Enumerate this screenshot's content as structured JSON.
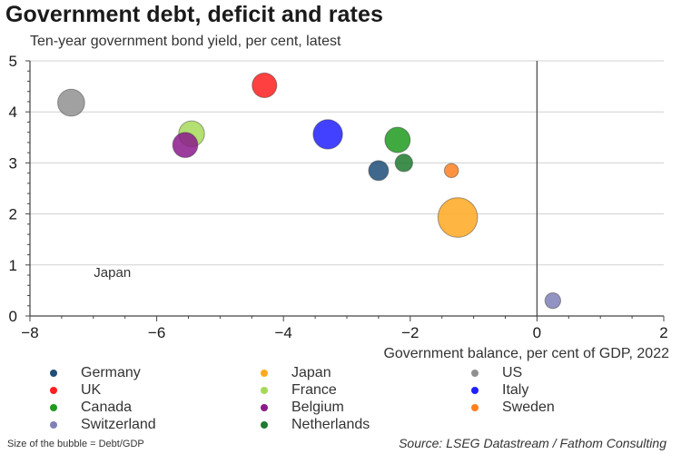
{
  "title": "Government debt, deficit and rates",
  "subtitle": "Ten-year government bond yield, per cent, latest",
  "footnote": "Size of the bubble = Debt/GDP",
  "source": "Source: LSEG Datastream / Fathom Consulting",
  "chart_data": {
    "type": "scatter",
    "bubble": true,
    "size_meaning": "Debt/GDP",
    "xlabel": "Government balance, per cent of GDP, 2022",
    "ylabel": "",
    "xlim": [
      -8,
      2
    ],
    "ylim": [
      0,
      5
    ],
    "x_ticks": [
      -8,
      -6,
      -4,
      -2,
      0,
      2
    ],
    "y_ticks": [
      0,
      1,
      2,
      3,
      4,
      5
    ],
    "x_tick_labels": [
      "−8",
      "−6",
      "−4",
      "−2",
      "0",
      "2"
    ],
    "y_tick_labels": [
      "0",
      "1",
      "2",
      "3",
      "4",
      "5"
    ],
    "grid": true,
    "legend_position": "bottom",
    "annotations": [
      {
        "text": "Japan",
        "x": -6.7,
        "y": 0.85
      }
    ],
    "series": [
      {
        "name": "Germany",
        "color": "#1f4e79",
        "points": [
          {
            "x": -2.5,
            "y": 2.85,
            "debt_gdp": 66
          }
        ]
      },
      {
        "name": "UK",
        "color": "#ff1f1f",
        "points": [
          {
            "x": -4.3,
            "y": 4.52,
            "debt_gdp": 101
          }
        ]
      },
      {
        "name": "Canada",
        "color": "#1f9a1f",
        "points": [
          {
            "x": -2.2,
            "y": 3.45,
            "debt_gdp": 107
          }
        ]
      },
      {
        "name": "Switzerland",
        "color": "#8080b8",
        "points": [
          {
            "x": 0.25,
            "y": 0.3,
            "debt_gdp": 41
          }
        ]
      },
      {
        "name": "Japan",
        "color": "#ffa820",
        "points": [
          {
            "x": -1.25,
            "y": 1.93,
            "debt_gdp": 261
          }
        ]
      },
      {
        "name": "France",
        "color": "#a6d95a",
        "points": [
          {
            "x": -5.45,
            "y": 3.57,
            "debt_gdp": 111
          }
        ]
      },
      {
        "name": "Belgium",
        "color": "#8b1a8b",
        "points": [
          {
            "x": -5.55,
            "y": 3.35,
            "debt_gdp": 105
          }
        ]
      },
      {
        "name": "Netherlands",
        "color": "#1e7a2e",
        "points": [
          {
            "x": -2.1,
            "y": 3.0,
            "debt_gdp": 51
          }
        ]
      },
      {
        "name": "US",
        "color": "#909090",
        "points": [
          {
            "x": -7.35,
            "y": 4.18,
            "debt_gdp": 121
          }
        ]
      },
      {
        "name": "Italy",
        "color": "#2020ff",
        "points": [
          {
            "x": -3.3,
            "y": 3.56,
            "debt_gdp": 144
          }
        ]
      },
      {
        "name": "Sweden",
        "color": "#ff8020",
        "points": [
          {
            "x": -1.35,
            "y": 2.85,
            "debt_gdp": 33
          }
        ]
      }
    ]
  },
  "legend": {
    "items": [
      {
        "label": "Germany",
        "color": "#1f4e79"
      },
      {
        "label": "UK",
        "color": "#ff1f1f"
      },
      {
        "label": "Canada",
        "color": "#1f9a1f"
      },
      {
        "label": "Switzerland",
        "color": "#8080b8"
      },
      {
        "label": "Japan",
        "color": "#ffa820"
      },
      {
        "label": "France",
        "color": "#a6d95a"
      },
      {
        "label": "Belgium",
        "color": "#8b1a8b"
      },
      {
        "label": "Netherlands",
        "color": "#1e7a2e"
      },
      {
        "label": "US",
        "color": "#909090"
      },
      {
        "label": "Italy",
        "color": "#2020ff"
      },
      {
        "label": "Sweden",
        "color": "#ff8020"
      }
    ]
  }
}
